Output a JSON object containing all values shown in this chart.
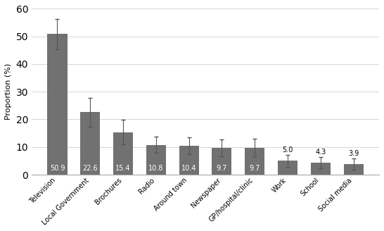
{
  "categories": [
    "Television",
    "Local Government",
    "Brochures",
    "Radio",
    "Around town",
    "Newspaper",
    "GP/hospital/clinic",
    "Work",
    "School",
    "Social media"
  ],
  "values": [
    50.9,
    22.6,
    15.4,
    10.8,
    10.4,
    9.7,
    9.7,
    5.0,
    4.3,
    3.9
  ],
  "errors_upper": [
    5.5,
    5.2,
    4.5,
    3.0,
    3.0,
    3.0,
    3.2,
    2.2,
    2.0,
    2.0
  ],
  "errors_lower": [
    5.5,
    5.2,
    4.5,
    3.0,
    3.0,
    3.0,
    3.2,
    2.2,
    2.0,
    2.0
  ],
  "bar_color": "#717171",
  "ylabel": "Proportion (%)",
  "ylim": [
    0,
    60
  ],
  "yticks": [
    0,
    10,
    20,
    30,
    40,
    50,
    60
  ],
  "value_label_fontsize": 7,
  "tick_label_fontsize": 7,
  "ylabel_fontsize": 8,
  "background_color": "#ffffff",
  "grid_color": "#d0d0d0",
  "inside_label_threshold": 7.0
}
